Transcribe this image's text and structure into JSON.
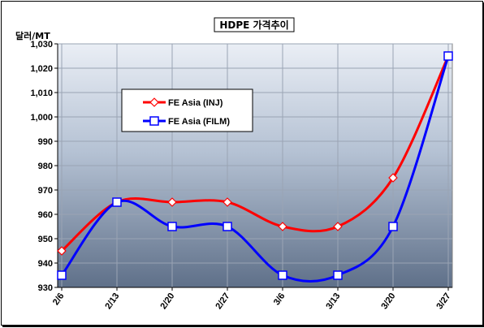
{
  "chart_data": {
    "type": "line",
    "title": "HDPE 가격추이",
    "ylabel": "달러/MT",
    "categories": [
      "2/6",
      "2/13",
      "2/20",
      "2/27",
      "3/6",
      "3/13",
      "3/20",
      "3/27"
    ],
    "ylim": [
      930,
      1030
    ],
    "yticks": [
      930,
      940,
      950,
      960,
      970,
      980,
      990,
      1000,
      1010,
      1020,
      1030
    ],
    "ytick_labels": [
      "930",
      "940",
      "950",
      "960",
      "970",
      "980",
      "990",
      "1,000",
      "1,010",
      "1,020",
      "1,030"
    ],
    "grid": true,
    "legend_position": "upper-left",
    "series": [
      {
        "name": "FE Asia (INJ)",
        "color": "#ff0000",
        "marker": "diamond",
        "values": [
          945,
          965,
          965,
          965,
          955,
          955,
          975,
          1025
        ]
      },
      {
        "name": "FE Asia (FILM)",
        "color": "#0000ff",
        "marker": "square",
        "values": [
          935,
          965,
          955,
          955,
          935,
          935,
          955,
          1025
        ]
      }
    ]
  }
}
